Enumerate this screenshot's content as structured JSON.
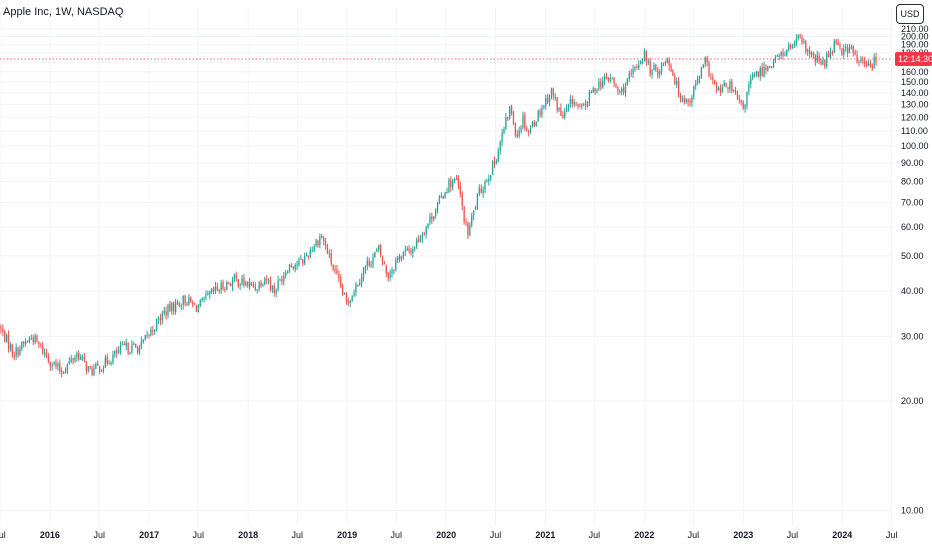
{
  "header": {
    "symbol_title": "Apple Inc, 1W, NASDAQ",
    "currency_label": "USD"
  },
  "colors": {
    "up": "#26a69a",
    "down": "#ef5350",
    "grid": "#f0f3fa",
    "price_line": "#f23645",
    "price_tag_bg": "#f23645"
  },
  "price_tag": {
    "value": 173.5,
    "label": "12:14:30"
  },
  "chart_data": {
    "type": "candlestick",
    "title": "Apple Inc, 1W, NASDAQ",
    "xlabel": "",
    "ylabel": "",
    "y_scale": "log",
    "ylim": [
      9.3,
      211
    ],
    "xlim": [
      "2015-07-01",
      "2024-07-06"
    ],
    "grid": true,
    "y_ticks": [
      10,
      20,
      30,
      40,
      50,
      60,
      70,
      80,
      90,
      100,
      110,
      120,
      130,
      140,
      150,
      160,
      170,
      180,
      190,
      200,
      210
    ],
    "y_tick_labels": [
      "10.00",
      "20.00",
      "30.00",
      "40.00",
      "50.00",
      "60.00",
      "70.00",
      "80.00",
      "90.00",
      "100.00",
      "110.00",
      "120.00",
      "130.00",
      "140.00",
      "150.00",
      "160.00",
      "170.00",
      "180.00",
      "190.00",
      "200.00",
      "210.00"
    ],
    "x_ticks": [
      {
        "date": "2015-07-01",
        "label": "Jul",
        "year": false
      },
      {
        "date": "2016-01-01",
        "label": "2016",
        "year": true
      },
      {
        "date": "2016-07-01",
        "label": "Jul",
        "year": false
      },
      {
        "date": "2017-01-01",
        "label": "2017",
        "year": true
      },
      {
        "date": "2017-07-01",
        "label": "Jul",
        "year": false
      },
      {
        "date": "2018-01-01",
        "label": "2018",
        "year": true
      },
      {
        "date": "2018-07-01",
        "label": "Jul",
        "year": false
      },
      {
        "date": "2019-01-01",
        "label": "2019",
        "year": true
      },
      {
        "date": "2019-07-01",
        "label": "Jul",
        "year": false
      },
      {
        "date": "2020-01-01",
        "label": "2020",
        "year": true
      },
      {
        "date": "2020-07-01",
        "label": "Jul",
        "year": false
      },
      {
        "date": "2021-01-01",
        "label": "2021",
        "year": true
      },
      {
        "date": "2021-07-01",
        "label": "Jul",
        "year": false
      },
      {
        "date": "2022-01-01",
        "label": "2022",
        "year": true
      },
      {
        "date": "2022-07-01",
        "label": "Jul",
        "year": false
      },
      {
        "date": "2023-01-01",
        "label": "2023",
        "year": true
      },
      {
        "date": "2023-07-01",
        "label": "Jul",
        "year": false
      },
      {
        "date": "2024-01-01",
        "label": "2024",
        "year": true
      },
      {
        "date": "2024-07-01",
        "label": "Jul",
        "year": false
      }
    ],
    "price_path": [
      [
        "2015-07-01",
        32
      ],
      [
        "2015-08-24",
        27
      ],
      [
        "2015-11-01",
        30
      ],
      [
        "2016-01-01",
        26
      ],
      [
        "2016-02-15",
        24
      ],
      [
        "2016-04-15",
        27
      ],
      [
        "2016-06-01",
        24
      ],
      [
        "2016-07-15",
        25
      ],
      [
        "2016-10-01",
        28
      ],
      [
        "2016-12-01",
        28
      ],
      [
        "2017-03-01",
        35
      ],
      [
        "2017-05-15",
        38
      ],
      [
        "2017-07-01",
        36
      ],
      [
        "2017-09-01",
        40
      ],
      [
        "2017-11-15",
        43
      ],
      [
        "2018-02-01",
        41
      ],
      [
        "2018-03-10",
        44
      ],
      [
        "2018-04-10",
        40
      ],
      [
        "2018-06-01",
        47
      ],
      [
        "2018-07-20",
        48
      ],
      [
        "2018-10-01",
        57
      ],
      [
        "2018-11-20",
        45
      ],
      [
        "2019-01-03",
        37
      ],
      [
        "2019-03-15",
        47
      ],
      [
        "2019-05-01",
        52
      ],
      [
        "2019-06-03",
        44
      ],
      [
        "2019-07-15",
        50
      ],
      [
        "2019-09-01",
        52
      ],
      [
        "2019-11-01",
        62
      ],
      [
        "2020-01-15",
        79
      ],
      [
        "2020-02-15",
        80
      ],
      [
        "2020-03-23",
        57
      ],
      [
        "2020-05-01",
        73
      ],
      [
        "2020-07-01",
        90
      ],
      [
        "2020-08-28",
        128
      ],
      [
        "2020-09-21",
        107
      ],
      [
        "2020-10-15",
        120
      ],
      [
        "2020-11-01",
        109
      ],
      [
        "2021-01-26",
        142
      ],
      [
        "2021-03-08",
        119
      ],
      [
        "2021-04-15",
        134
      ],
      [
        "2021-05-15",
        125
      ],
      [
        "2021-07-15",
        148
      ],
      [
        "2021-09-01",
        154
      ],
      [
        "2021-10-05",
        139
      ],
      [
        "2021-11-15",
        155
      ],
      [
        "2022-01-03",
        180
      ],
      [
        "2022-01-28",
        160
      ],
      [
        "2022-03-01",
        163
      ],
      [
        "2022-04-01",
        175
      ],
      [
        "2022-05-12",
        140
      ],
      [
        "2022-06-16",
        132
      ],
      [
        "2022-08-17",
        170
      ],
      [
        "2022-09-30",
        140
      ],
      [
        "2022-11-10",
        148
      ],
      [
        "2023-01-03",
        126
      ],
      [
        "2023-02-01",
        152
      ],
      [
        "2023-04-01",
        165
      ],
      [
        "2023-06-01",
        180
      ],
      [
        "2023-07-31",
        196
      ],
      [
        "2023-09-15",
        175
      ],
      [
        "2023-10-27",
        168
      ],
      [
        "2023-12-14",
        197
      ],
      [
        "2024-01-05",
        182
      ],
      [
        "2024-02-01",
        187
      ],
      [
        "2024-03-01",
        171
      ],
      [
        "2024-04-19",
        165
      ],
      [
        "2024-05-03",
        173.5
      ]
    ]
  }
}
